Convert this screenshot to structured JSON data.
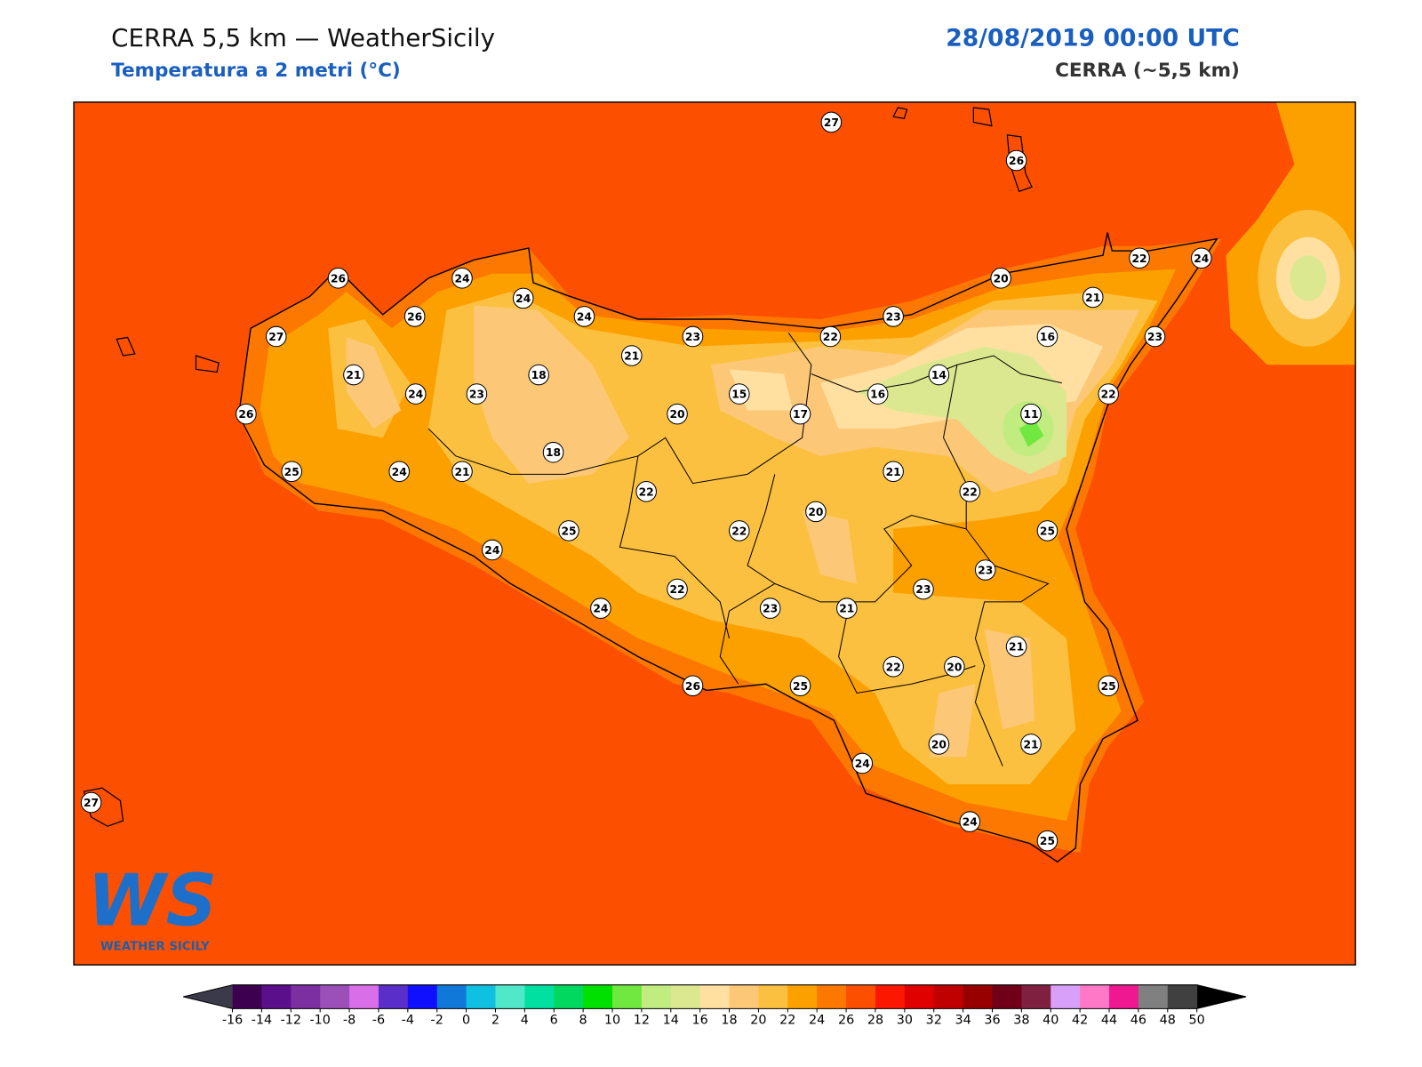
{
  "header": {
    "title": "CERRA 5,5 km — WeatherSicily",
    "subtitle": "Temperatura a 2 metri (°C)",
    "date": "28/08/2019 00:00 UTC",
    "model": "CERRA (~5,5 km)"
  },
  "logo": {
    "mark": "WS",
    "name": "WEATHER SICILY"
  },
  "stations": [
    27,
    26,
    26,
    24,
    24,
    26,
    24,
    27,
    23,
    22,
    23,
    20,
    22,
    24,
    21,
    16,
    23,
    21,
    21,
    24,
    23,
    18,
    15,
    17,
    16,
    14,
    22,
    11,
    20,
    26,
    18,
    25,
    24,
    21,
    22,
    21,
    22,
    20,
    25,
    22,
    25,
    24,
    23,
    22,
    23,
    23,
    21,
    24,
    21,
    22,
    20,
    26,
    25,
    25,
    20,
    21,
    24,
    24,
    25,
    27
  ],
  "colorbar": {
    "ticks": [
      -16,
      -14,
      -12,
      -10,
      -8,
      -6,
      -4,
      -2,
      0,
      2,
      4,
      6,
      8,
      10,
      12,
      14,
      16,
      18,
      20,
      22,
      24,
      26,
      28,
      30,
      32,
      34,
      36,
      38,
      40,
      42,
      44,
      46,
      48,
      50
    ],
    "colors": [
      "#3d0050",
      "#5b0f8a",
      "#7b2fa0",
      "#9b4fb8",
      "#d96fe8",
      "#5a2ec8",
      "#1010ff",
      "#1078d8",
      "#10c0e0",
      "#50e8c8",
      "#00e0a0",
      "#00d860",
      "#00e000",
      "#70e840",
      "#c0ec80",
      "#dce890",
      "#ffe0a0",
      "#fcc878",
      "#fcc040",
      "#fca000",
      "#fc7800",
      "#fc5000",
      "#fc1800",
      "#e00000",
      "#c00000",
      "#980000",
      "#700018",
      "#802040",
      "#d8a0f8",
      "#ff78c8",
      "#f01890",
      "#808080",
      "#404040"
    ],
    "under_color": "#3a3a4a",
    "over_color": "#000000"
  }
}
